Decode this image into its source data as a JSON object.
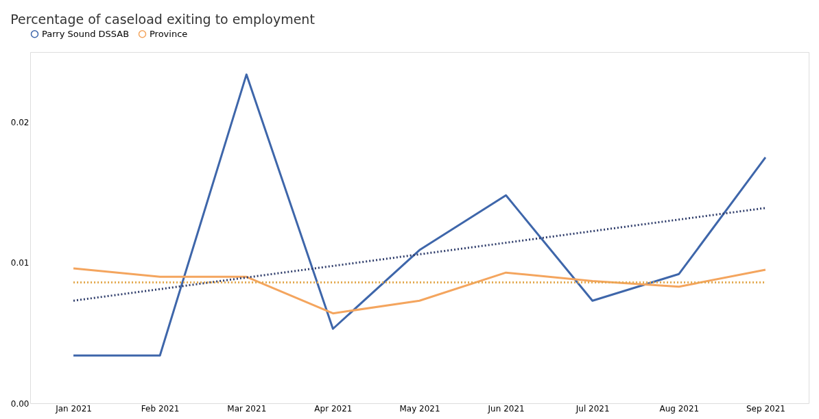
{
  "chart_data": {
    "type": "line",
    "title": "Percentage of caseload exiting to employment",
    "categories": [
      "Jan 2021",
      "Feb 2021",
      "Mar 2021",
      "Apr 2021",
      "May 2021",
      "Jun 2021",
      "Jul 2021",
      "Aug 2021",
      "Sep 2021"
    ],
    "series": [
      {
        "name": "Parry Sound DSSAB",
        "color": "#3e66aa",
        "values": [
          0.0034,
          0.0034,
          0.0234,
          0.0053,
          0.0109,
          0.0148,
          0.0073,
          0.0092,
          0.0175
        ]
      },
      {
        "name": "Province",
        "color": "#f4a55e",
        "values": [
          0.0096,
          0.009,
          0.009,
          0.0064,
          0.0073,
          0.0093,
          0.0087,
          0.0083,
          0.0095
        ]
      },
      {
        "type": "line",
        "line_style": "dotted",
        "color": "#2f3d6b",
        "x": [
          "Jan 2021",
          "Sep 2021"
        ],
        "values": [
          0.0073,
          0.0139
        ]
      },
      {
        "type": "line",
        "line_style": "dotted",
        "color": "#e3a94e",
        "x": [
          "Jan 2021",
          "Sep 2021"
        ],
        "values": [
          0.0086,
          0.0086
        ]
      }
    ],
    "ylim": [
      0,
      0.025
    ],
    "yticks": [
      {
        "value": 0,
        "label": "0.00"
      },
      {
        "value": 0.01,
        "label": "0.01"
      },
      {
        "value": 0.02,
        "label": "0.02"
      }
    ],
    "legend": "top left",
    "line_style": "solid",
    "marker": "none"
  }
}
